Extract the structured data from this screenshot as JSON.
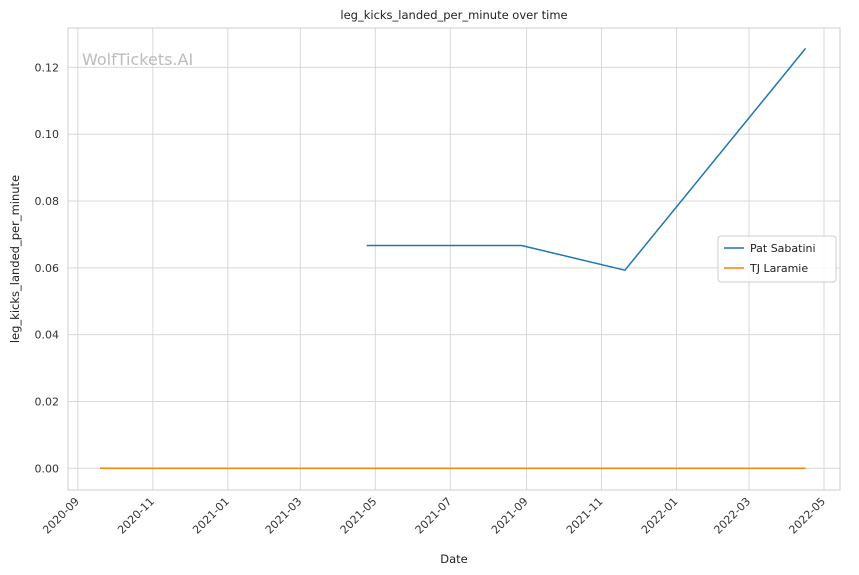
{
  "chart_data": {
    "type": "line",
    "title": "leg_kicks_landed_per_minute over time",
    "xlabel": "Date",
    "ylabel": "leg_kicks_landed_per_minute",
    "watermark": "WolfTickets.AI",
    "x_ticks": [
      "2020-09",
      "2020-11",
      "2021-01",
      "2021-03",
      "2021-05",
      "2021-07",
      "2021-09",
      "2021-11",
      "2022-01",
      "2022-03",
      "2022-05"
    ],
    "y_ticks": [
      "0.00",
      "0.02",
      "0.04",
      "0.06",
      "0.08",
      "0.10",
      "0.12"
    ],
    "xlim": [
      "2020-08-24",
      "2022-05-14"
    ],
    "ylim": [
      -0.0065,
      0.1318
    ],
    "grid": true,
    "legend_position": "center-right",
    "series": [
      {
        "name": "Pat Sabatini",
        "color": "#1f77b4",
        "points": [
          {
            "date": "2021-04-24",
            "value": 0.0667
          },
          {
            "date": "2021-08-28",
            "value": 0.0667
          },
          {
            "date": "2021-11-20",
            "value": 0.0593
          },
          {
            "date": "2022-04-16",
            "value": 0.1257
          }
        ]
      },
      {
        "name": "TJ Laramie",
        "color": "#ff7f0e",
        "points": [
          {
            "date": "2020-09-19",
            "value": 0.0
          },
          {
            "date": "2022-04-16",
            "value": 0.0
          }
        ]
      }
    ]
  }
}
